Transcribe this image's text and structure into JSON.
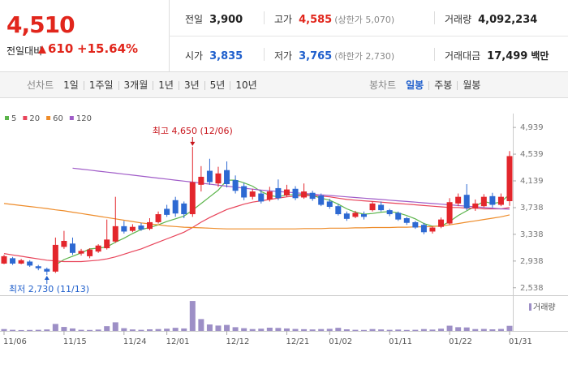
{
  "header": {
    "price": "4,510",
    "change_label": "전일대비",
    "change": "610",
    "change_pct": "+15.64%",
    "color": "#e1261c",
    "stats": [
      {
        "label": "전일",
        "value": "3,900",
        "color": "#222222"
      },
      {
        "label": "고가",
        "value": "4,585",
        "note": "(상한가 5,070)",
        "color": "#e1261c"
      },
      {
        "label": "거래량",
        "value": "4,092,234",
        "color": "#222222"
      },
      {
        "label": "시가",
        "value": "3,835",
        "color": "#1f5fcc"
      },
      {
        "label": "저가",
        "value": "3,765",
        "note": "(하한가 2,730)",
        "color": "#1f5fcc"
      },
      {
        "label": "거래대금",
        "value": "17,499",
        "unit": "백만",
        "color": "#222222"
      }
    ]
  },
  "tabs": {
    "line_label": "선차트",
    "line_periods": [
      "1일",
      "1주일",
      "3개월",
      "1년",
      "3년",
      "5년",
      "10년"
    ],
    "candle_label": "봉차트",
    "candle_periods": [
      "일봉",
      "주봉",
      "월봉"
    ],
    "selected_candle_period": 0
  },
  "chart_data": {
    "type": "candlestick",
    "categories": [
      "11/06",
      null,
      null,
      null,
      null,
      null,
      null,
      "11/15",
      null,
      null,
      null,
      null,
      null,
      null,
      "11/24",
      null,
      null,
      null,
      null,
      "12/01",
      null,
      null,
      null,
      null,
      null,
      null,
      "12/12",
      null,
      null,
      null,
      null,
      null,
      null,
      "12/21",
      null,
      null,
      null,
      null,
      "01/02",
      null,
      null,
      null,
      null,
      null,
      null,
      "01/11",
      null,
      null,
      null,
      null,
      null,
      null,
      "01/22",
      null,
      null,
      null,
      null,
      null,
      null,
      "01/31"
    ],
    "open": [
      2900,
      2980,
      2900,
      2930,
      2860,
      2820,
      2780,
      3150,
      3200,
      3050,
      3010,
      3080,
      3130,
      3230,
      3460,
      3390,
      3470,
      3420,
      3520,
      3720,
      3850,
      3800,
      3640,
      4080,
      4290,
      4100,
      4300,
      4150,
      4060,
      3900,
      3950,
      3860,
      4030,
      3920,
      4020,
      3890,
      3960,
      3920,
      3830,
      3760,
      3650,
      3600,
      3640,
      3700,
      3780,
      3700,
      3660,
      3580,
      3520,
      3480,
      3380,
      3450,
      3500,
      3800,
      3930,
      3730,
      3760,
      3910,
      3780,
      3835
    ],
    "high": [
      3030,
      3000,
      2970,
      2950,
      2880,
      2840,
      3290,
      3390,
      3290,
      3120,
      3130,
      3190,
      3560,
      3900,
      3540,
      3490,
      3510,
      3580,
      3680,
      3780,
      3900,
      3830,
      4650,
      4360,
      4470,
      4350,
      4430,
      4220,
      4110,
      4020,
      4000,
      4050,
      4160,
      4080,
      4060,
      4100,
      3990,
      3950,
      3870,
      3790,
      3680,
      3690,
      3680,
      3830,
      3830,
      3720,
      3680,
      3600,
      3540,
      3510,
      3460,
      3590,
      3880,
      3950,
      4090,
      3860,
      3940,
      3960,
      3950,
      4585
    ],
    "low": [
      2890,
      2880,
      2890,
      2850,
      2800,
      2730,
      2760,
      3120,
      3030,
      3020,
      2980,
      3060,
      3110,
      3210,
      3350,
      3370,
      3390,
      3400,
      3500,
      3600,
      3600,
      3580,
      3600,
      3980,
      4080,
      4050,
      4040,
      3950,
      3850,
      3860,
      3800,
      3830,
      3850,
      3900,
      3850,
      3870,
      3840,
      3760,
      3720,
      3620,
      3540,
      3580,
      3560,
      3680,
      3680,
      3610,
      3540,
      3480,
      3420,
      3340,
      3350,
      3430,
      3480,
      3760,
      3700,
      3690,
      3740,
      3740,
      3760,
      3765
    ],
    "close": [
      3010,
      2900,
      2950,
      2870,
      2830,
      2780,
      3180,
      3240,
      3060,
      3090,
      3110,
      3170,
      3260,
      3460,
      3380,
      3450,
      3410,
      3520,
      3640,
      3630,
      3650,
      3640,
      4120,
      4200,
      4120,
      4250,
      4090,
      3990,
      3890,
      3980,
      3830,
      3980,
      3880,
      4010,
      3880,
      3980,
      3870,
      3780,
      3750,
      3640,
      3570,
      3660,
      3600,
      3800,
      3700,
      3640,
      3560,
      3510,
      3440,
      3370,
      3440,
      3560,
      3820,
      3900,
      3730,
      3800,
      3900,
      3780,
      3900,
      4510
    ],
    "volume": [
      1500000,
      900000,
      700000,
      800000,
      900000,
      1200000,
      5600000,
      3200000,
      2000000,
      900000,
      800000,
      1100000,
      3800000,
      6900000,
      2200000,
      1200000,
      900000,
      1300000,
      1500000,
      1800000,
      2500000,
      2000000,
      24000000,
      9500000,
      5200000,
      4300000,
      4800000,
      3000000,
      2200000,
      1500000,
      1800000,
      2600000,
      2400000,
      2000000,
      1600000,
      1400000,
      1200000,
      1500000,
      1700000,
      2500000,
      1300000,
      900000,
      800000,
      1500000,
      1200000,
      900000,
      1100000,
      800000,
      900000,
      1500000,
      1100000,
      1800000,
      4200000,
      3000000,
      2800000,
      1500000,
      1600000,
      1300000,
      1600000,
      4092234
    ],
    "volume_lim": [
      0,
      26000000
    ],
    "volume_label": "거래량",
    "volume_color": "#9d8fc6",
    "up_color": "#e3262c",
    "down_color": "#2d69d2",
    "high_label": "최고 4,650 (12/06)",
    "high_label_color": "#c8141b",
    "low_label": "최저 2,730 (11/13)",
    "low_label_color": "#1f5fcc",
    "series": [
      {
        "name": "5",
        "color": "#5bb44a",
        "values": [
          null,
          null,
          null,
          null,
          null,
          null,
          2880,
          2960,
          3010,
          3060,
          3120,
          3130,
          3150,
          3220,
          3280,
          3350,
          3410,
          3440,
          3480,
          3530,
          3570,
          3610,
          3700,
          3800,
          3900,
          4000,
          4150,
          4150,
          4110,
          4060,
          3980,
          3920,
          3900,
          3930,
          3930,
          3940,
          3920,
          3880,
          3850,
          3790,
          3720,
          3670,
          3640,
          3650,
          3670,
          3680,
          3660,
          3620,
          3570,
          3500,
          3460,
          3460,
          3530,
          3620,
          3690,
          3760,
          3830,
          3800,
          3820,
          3940
        ]
      },
      {
        "name": "20",
        "color": "#e8445a",
        "values": [
          3050,
          3030,
          3010,
          2990,
          2970,
          2950,
          2940,
          2930,
          2930,
          2930,
          2940,
          2950,
          2970,
          3000,
          3040,
          3080,
          3120,
          3170,
          3220,
          3270,
          3320,
          3370,
          3440,
          3520,
          3590,
          3650,
          3710,
          3750,
          3790,
          3820,
          3840,
          3860,
          3880,
          3900,
          3910,
          3920,
          3920,
          3910,
          3900,
          3880,
          3860,
          3850,
          3840,
          3830,
          3820,
          3810,
          3800,
          3790,
          3780,
          3770,
          3760,
          3750,
          3740,
          3740,
          3730,
          3730,
          3720,
          3720,
          3720,
          3740
        ]
      },
      {
        "name": "60",
        "color": "#ee8c2a",
        "values": [
          3800,
          3785,
          3770,
          3755,
          3740,
          3725,
          3705,
          3690,
          3670,
          3650,
          3630,
          3610,
          3590,
          3570,
          3550,
          3530,
          3510,
          3495,
          3480,
          3465,
          3455,
          3445,
          3440,
          3435,
          3430,
          3425,
          3420,
          3420,
          3420,
          3420,
          3420,
          3420,
          3420,
          3420,
          3420,
          3425,
          3425,
          3425,
          3430,
          3430,
          3430,
          3435,
          3435,
          3440,
          3440,
          3440,
          3445,
          3445,
          3450,
          3450,
          3455,
          3465,
          3480,
          3500,
          3520,
          3540,
          3560,
          3580,
          3600,
          3630
        ]
      },
      {
        "name": "120",
        "color": "#a05cc8",
        "values": [
          null,
          null,
          null,
          null,
          null,
          null,
          null,
          null,
          4330,
          4315,
          4300,
          4285,
          4270,
          4255,
          4240,
          4225,
          4210,
          4195,
          4180,
          4165,
          4150,
          4135,
          4120,
          4105,
          4090,
          4075,
          4060,
          4045,
          4030,
          4015,
          4000,
          3990,
          3980,
          3970,
          3960,
          3950,
          3940,
          3930,
          3920,
          3910,
          3900,
          3890,
          3880,
          3870,
          3860,
          3850,
          3840,
          3830,
          3820,
          3810,
          3800,
          3790,
          3780,
          3770,
          3760,
          3750,
          3740,
          3730,
          3720,
          3715
        ]
      }
    ],
    "ylim": [
      2450,
      5050
    ],
    "yticks": [
      {
        "value": 2538,
        "label": "2,538"
      },
      {
        "value": 2938,
        "label": "2,938"
      },
      {
        "value": 3338,
        "label": "3,338"
      },
      {
        "value": 3738,
        "label": "3,738"
      },
      {
        "value": 4139,
        "label": "4,139"
      },
      {
        "value": 4539,
        "label": "4,539"
      },
      {
        "value": 4939,
        "label": "4,939"
      }
    ],
    "grid": false
  }
}
